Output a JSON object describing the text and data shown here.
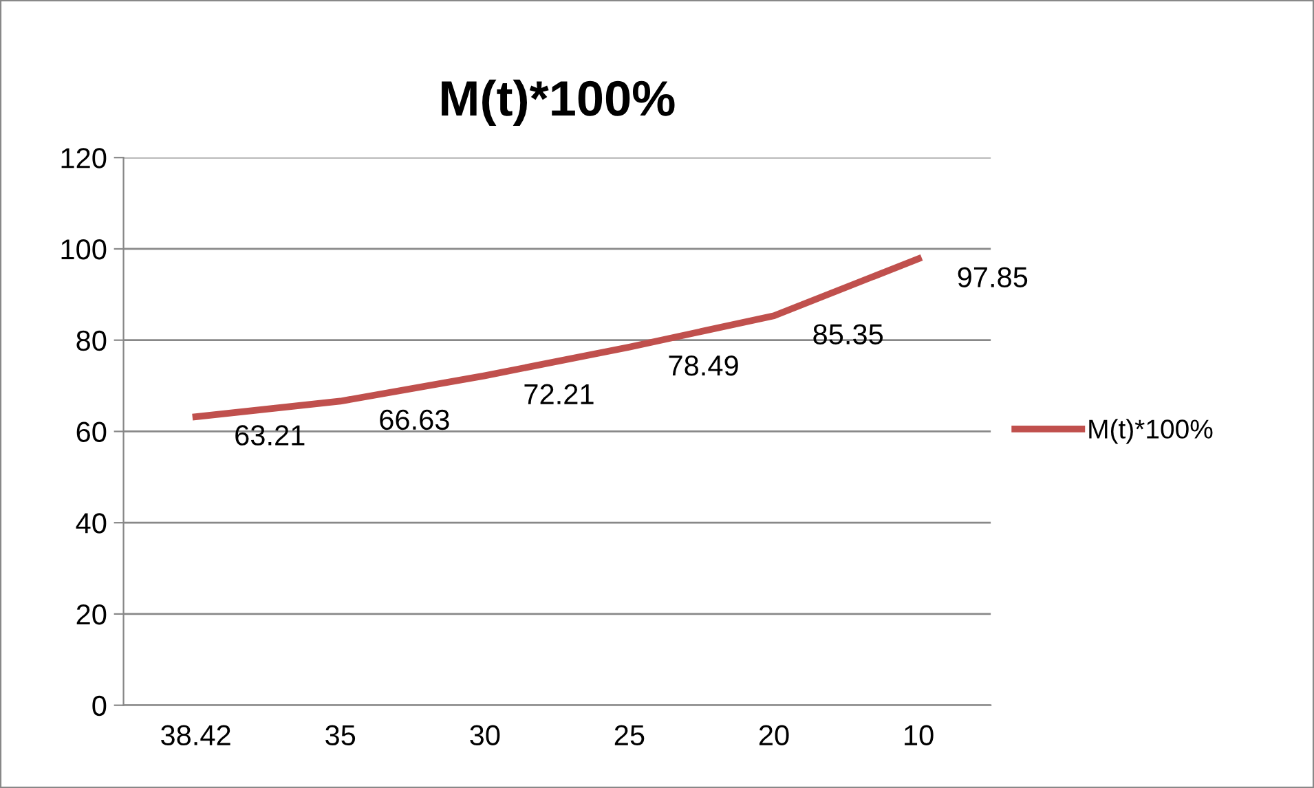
{
  "chart_data": {
    "type": "line",
    "title": "M(t)*100%",
    "categories": [
      "38.42",
      "35",
      "30",
      "25",
      "20",
      "10"
    ],
    "series": [
      {
        "name": "M(t)*100%",
        "color": "#c0504d",
        "values": [
          63.21,
          66.63,
          72.21,
          78.49,
          85.35,
          97.85
        ]
      }
    ],
    "ylim": [
      0,
      120
    ],
    "yticks": [
      0,
      20,
      40,
      60,
      80,
      100,
      120
    ],
    "grid": "y",
    "legend": "right",
    "data_labels": true,
    "marker": "none",
    "line_style": "solid"
  }
}
